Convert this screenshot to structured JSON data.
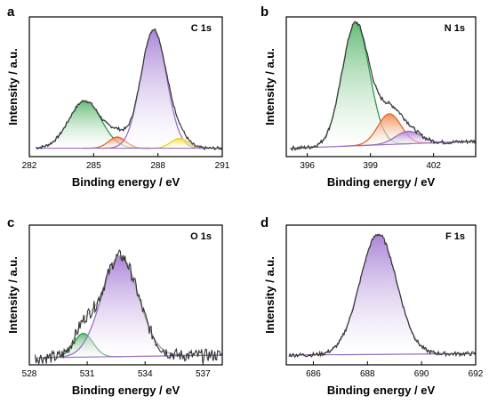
{
  "chart_data": [
    {
      "panel": "a",
      "title": "C 1s",
      "type": "line",
      "xlabel": "Binding energy / eV",
      "ylabel": "Intensity / a.u.",
      "xlim": [
        282,
        291
      ],
      "xticks": [
        282,
        285,
        288,
        291
      ],
      "ylim": [
        0,
        1.0
      ],
      "baseline": [
        [
          282.3,
          0.06
        ],
        [
          291,
          0.06
        ]
      ],
      "peaks": [
        {
          "center": 284.6,
          "height": 0.34,
          "sigma": 0.75,
          "color": "#2e9c4e",
          "fill": "#5fb870"
        },
        {
          "center": 286.1,
          "height": 0.08,
          "sigma": 0.4,
          "color": "#e8612c",
          "fill": "#f08a50"
        },
        {
          "center": 287.8,
          "height": 0.85,
          "sigma": 0.6,
          "color": "#9a6fc2",
          "fill": "#a67fd6"
        },
        {
          "center": 289.0,
          "height": 0.07,
          "sigma": 0.4,
          "color": "#e8d020",
          "fill": "#f2e030"
        }
      ],
      "raw_x": [
        282.3,
        290.9
      ]
    },
    {
      "panel": "b",
      "title": "N 1s",
      "type": "line",
      "xlabel": "Binding energy / eV",
      "ylabel": "Intensity / a.u.",
      "xlim": [
        395,
        404
      ],
      "xticks": [
        396,
        399,
        402
      ],
      "ylim": [
        0,
        1.0
      ],
      "baseline": [
        [
          395.2,
          0.06
        ],
        [
          404,
          0.11
        ]
      ],
      "peaks": [
        {
          "center": 398.3,
          "height": 0.88,
          "sigma": 0.65,
          "color": "#2e9c4e",
          "fill": "#5fb870"
        },
        {
          "center": 399.9,
          "height": 0.22,
          "sigma": 0.55,
          "color": "#e8612c",
          "fill": "#f08a50"
        },
        {
          "center": 400.8,
          "height": 0.09,
          "sigma": 0.6,
          "color": "#9a6fc2",
          "fill": "#a67fd6"
        }
      ],
      "raw_x": [
        395.2,
        404
      ]
    },
    {
      "panel": "c",
      "title": "O 1s",
      "type": "line",
      "xlabel": "Binding energy / eV",
      "ylabel": "Intensity / a.u.",
      "xlim": [
        528,
        538
      ],
      "xticks": [
        528,
        531,
        534,
        537
      ],
      "ylim": [
        0,
        1.0
      ],
      "baseline": [
        [
          528.3,
          0.05
        ],
        [
          538,
          0.07
        ]
      ],
      "peaks": [
        {
          "center": 530.8,
          "height": 0.17,
          "sigma": 0.5,
          "color": "#2e9c4e",
          "fill": "#5fb870"
        },
        {
          "center": 532.7,
          "height": 0.72,
          "sigma": 0.95,
          "color": "#9a6fc2",
          "fill": "#a67fd6"
        }
      ],
      "raw_x": [
        528.3,
        538
      ]
    },
    {
      "panel": "d",
      "title": "F 1s",
      "type": "line",
      "xlabel": "Binding energy / eV",
      "ylabel": "Intensity / a.u.",
      "xlim": [
        685,
        692
      ],
      "xticks": [
        686,
        688,
        690,
        692
      ],
      "ylim": [
        0,
        1.0
      ],
      "baseline": [
        [
          685.1,
          0.07
        ],
        [
          692,
          0.08
        ]
      ],
      "peaks": [
        {
          "center": 688.4,
          "height": 0.86,
          "sigma": 0.68,
          "color": "#9a6fc2",
          "fill": "#a67fd6"
        }
      ],
      "raw_x": [
        685.1,
        692
      ]
    }
  ]
}
